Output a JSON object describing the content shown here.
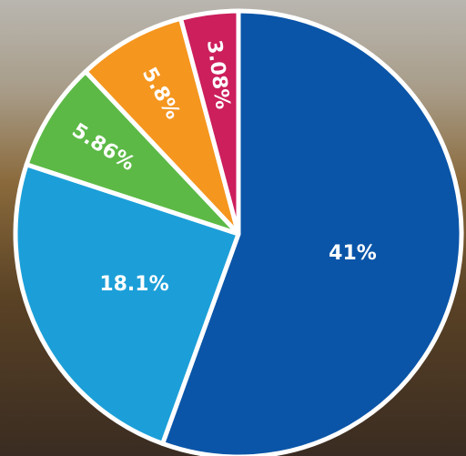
{
  "chart_data": {
    "type": "pie",
    "values": [
      41,
      18.1,
      5.86,
      5.8,
      3.08
    ],
    "value_labels": [
      "41%",
      "18.1%",
      "5.86%",
      "5.8%",
      "3.08%"
    ],
    "colors": [
      "#0a55a8",
      "#1c9fd8",
      "#5cb946",
      "#f5961f",
      "#cc1f5c"
    ]
  }
}
